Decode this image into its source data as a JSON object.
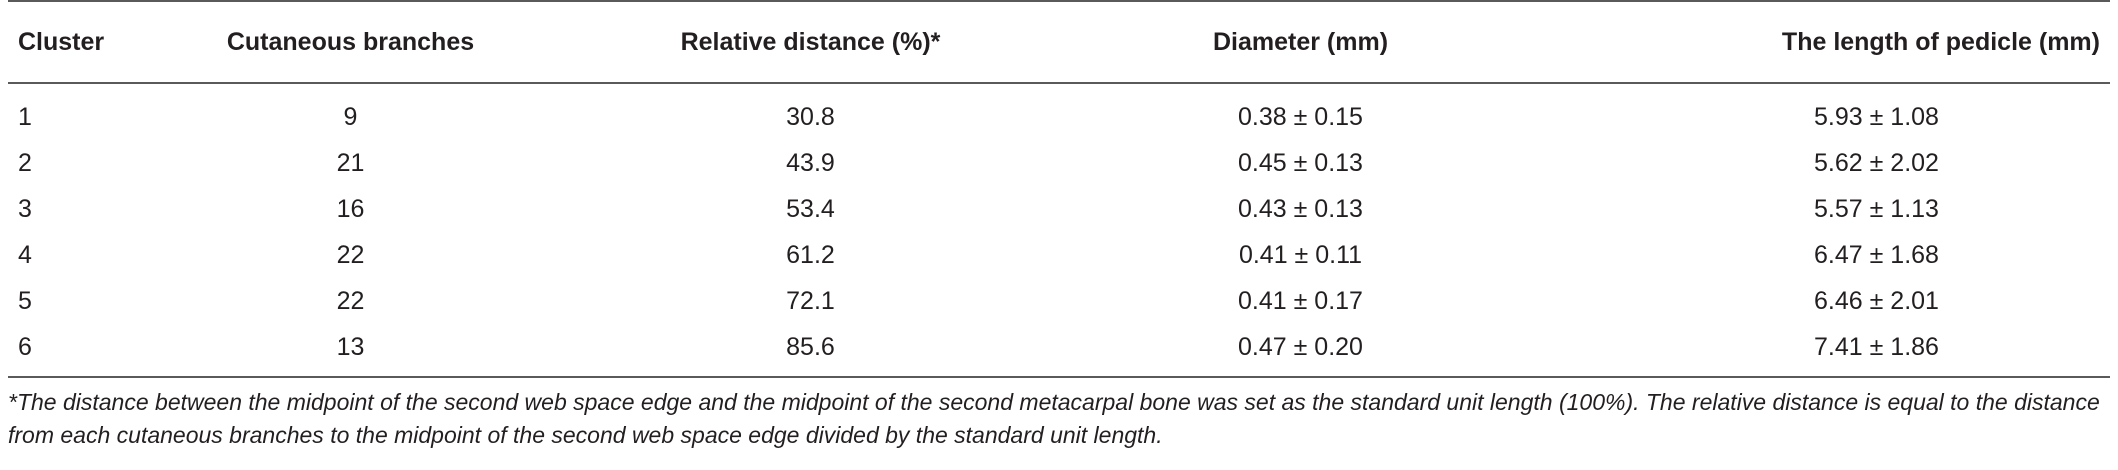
{
  "table": {
    "columns": [
      "Cluster",
      "Cutaneous branches",
      "Relative distance (%)*",
      "Diameter (mm)",
      "The length of pedicle (mm)"
    ],
    "rows": [
      [
        "1",
        "9",
        "30.8",
        "0.38 ± 0.15",
        "5.93 ± 1.08"
      ],
      [
        "2",
        "21",
        "43.9",
        "0.45 ± 0.13",
        "5.62 ± 2.02"
      ],
      [
        "3",
        "16",
        "53.4",
        "0.43 ± 0.13",
        "5.57 ± 1.13"
      ],
      [
        "4",
        "22",
        "61.2",
        "0.41 ± 0.11",
        "6.47 ± 1.68"
      ],
      [
        "5",
        "22",
        "72.1",
        "0.41 ± 0.17",
        "6.46 ± 2.01"
      ],
      [
        "6",
        "13",
        "85.6",
        "0.47 ± 0.20",
        "7.41 ± 1.86"
      ]
    ]
  },
  "footnote": "*The distance between the midpoint of the second web space edge and the midpoint of the second metacarpal bone was set as the standard unit length (100%). The relative distance is equal to the distance from each cutaneous branches to the midpoint of the second web space edge divided by the standard unit length."
}
